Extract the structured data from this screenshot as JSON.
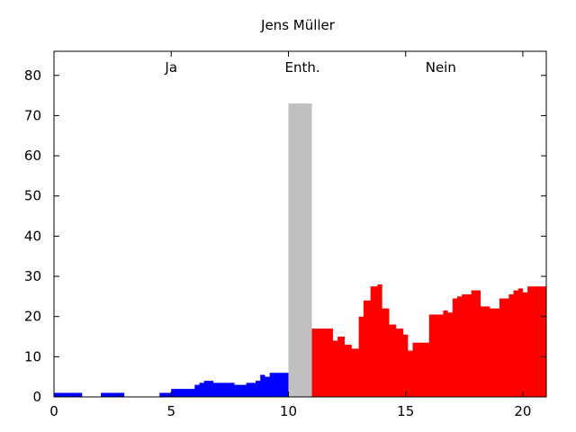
{
  "chart_data": {
    "type": "area",
    "title": "Jens Müller",
    "xlabel": "",
    "ylabel": "",
    "xlim": [
      0,
      21
    ],
    "ylim": [
      0,
      86
    ],
    "x_ticks": [
      0,
      5,
      10,
      15,
      20
    ],
    "y_ticks": [
      0,
      10,
      20,
      30,
      40,
      50,
      60,
      70,
      80
    ],
    "grid": false,
    "legend": "none",
    "region_labels": [
      {
        "text": "Ja",
        "x": 5
      },
      {
        "text": "Enth.",
        "x": 10.6
      },
      {
        "text": "Nein",
        "x": 16.5
      }
    ],
    "series": [
      {
        "color": "#0000ff",
        "steps": [
          [
            0.0,
            1
          ],
          [
            0.3,
            1
          ],
          [
            0.6,
            1
          ],
          [
            0.9,
            1
          ],
          [
            1.2,
            0
          ],
          [
            1.5,
            0
          ],
          [
            1.8,
            0
          ],
          [
            2.0,
            1
          ],
          [
            2.3,
            1
          ],
          [
            2.6,
            1
          ],
          [
            3.0,
            0
          ],
          [
            3.3,
            0
          ],
          [
            3.6,
            0
          ],
          [
            4.0,
            0
          ],
          [
            4.3,
            0
          ],
          [
            4.5,
            1
          ],
          [
            4.8,
            1
          ],
          [
            5.0,
            2
          ],
          [
            5.3,
            2
          ],
          [
            5.6,
            2
          ],
          [
            5.9,
            2
          ],
          [
            6.0,
            3
          ],
          [
            6.2,
            3.5
          ],
          [
            6.4,
            4
          ],
          [
            6.6,
            4
          ],
          [
            6.8,
            3.5
          ],
          [
            7.1,
            3.5
          ],
          [
            7.4,
            3.5
          ],
          [
            7.7,
            3
          ],
          [
            8.0,
            3
          ],
          [
            8.2,
            3.5
          ],
          [
            8.4,
            3.5
          ],
          [
            8.6,
            4
          ],
          [
            8.8,
            5.5
          ],
          [
            9.0,
            5
          ],
          [
            9.2,
            6
          ],
          [
            9.5,
            6
          ],
          [
            9.8,
            6
          ]
        ],
        "end": 10.0
      },
      {
        "color": "#c0c0c0",
        "steps": [
          [
            10.0,
            73
          ]
        ],
        "end": 11.0
      },
      {
        "color": "#ff0000",
        "steps": [
          [
            11.0,
            17
          ],
          [
            11.3,
            17
          ],
          [
            11.6,
            17
          ],
          [
            11.9,
            14
          ],
          [
            12.1,
            15
          ],
          [
            12.4,
            13
          ],
          [
            12.7,
            12
          ],
          [
            13.0,
            20
          ],
          [
            13.2,
            24
          ],
          [
            13.5,
            27.5
          ],
          [
            13.8,
            28
          ],
          [
            14.0,
            22
          ],
          [
            14.3,
            18
          ],
          [
            14.6,
            17
          ],
          [
            14.9,
            15.5
          ],
          [
            15.1,
            11.5
          ],
          [
            15.3,
            13.5
          ],
          [
            15.6,
            13.5
          ],
          [
            15.9,
            13.5
          ],
          [
            16.0,
            20.5
          ],
          [
            16.3,
            20.5
          ],
          [
            16.6,
            21.5
          ],
          [
            16.8,
            21
          ],
          [
            17.0,
            24.5
          ],
          [
            17.2,
            25
          ],
          [
            17.4,
            25.5
          ],
          [
            17.6,
            25.5
          ],
          [
            17.8,
            26.5
          ],
          [
            18.0,
            26.5
          ],
          [
            18.2,
            22.5
          ],
          [
            18.4,
            22.5
          ],
          [
            18.6,
            22
          ],
          [
            18.8,
            22
          ],
          [
            19.0,
            24.5
          ],
          [
            19.2,
            24.5
          ],
          [
            19.4,
            25.5
          ],
          [
            19.6,
            26.5
          ],
          [
            19.8,
            27
          ],
          [
            20.0,
            26
          ],
          [
            20.2,
            27.5
          ],
          [
            20.5,
            27.5
          ],
          [
            20.8,
            27.5
          ]
        ],
        "end": 21.0
      }
    ]
  }
}
